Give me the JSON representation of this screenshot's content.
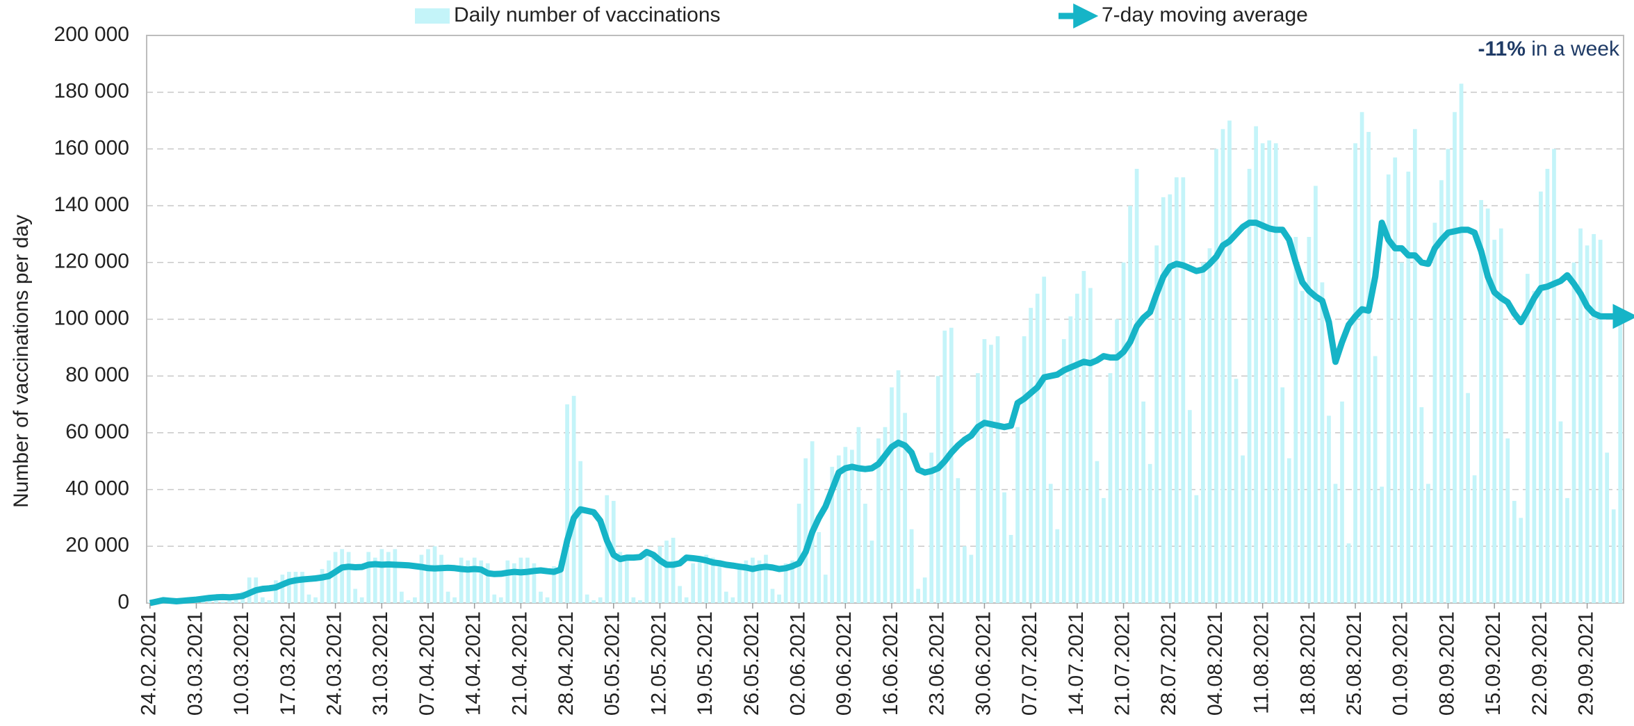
{
  "chart_data": {
    "type": "bar_line",
    "y_axis_label": "Number of vaccinations per day",
    "annotation": {
      "bold": "-11%",
      "text": "in a week"
    },
    "ylim": [
      0,
      200000
    ],
    "yticks": [
      0,
      {
        "value": 20000,
        "label": "20 000"
      },
      {
        "value": 40000,
        "label": "40 000"
      },
      {
        "value": 60000,
        "label": "60 000"
      },
      {
        "value": 80000,
        "label": "80 000"
      },
      {
        "value": 100000,
        "label": "100 000"
      },
      {
        "value": 120000,
        "label": "120 000"
      },
      {
        "value": 140000,
        "label": "140 000"
      },
      {
        "value": 160000,
        "label": "160 000"
      },
      {
        "value": 180000,
        "label": "180 000"
      },
      {
        "value": 200000,
        "label": "200 000"
      }
    ],
    "grid": true,
    "categories": [
      "24.02.2021",
      null,
      null,
      null,
      null,
      null,
      null,
      "03.03.2021",
      null,
      null,
      null,
      null,
      null,
      null,
      "10.03.2021",
      null,
      null,
      null,
      null,
      null,
      null,
      "17.03.2021",
      null,
      null,
      null,
      null,
      null,
      null,
      "24.03.2021",
      null,
      null,
      null,
      null,
      null,
      null,
      "31.03.2021",
      null,
      null,
      null,
      null,
      null,
      null,
      "07.04.2021",
      null,
      null,
      null,
      null,
      null,
      null,
      "14.04.2021",
      null,
      null,
      null,
      null,
      null,
      null,
      "21.04.2021",
      null,
      null,
      null,
      null,
      null,
      null,
      "28.04.2021",
      null,
      null,
      null,
      null,
      null,
      null,
      "05.05.2021",
      null,
      null,
      null,
      null,
      null,
      null,
      "12.05.2021",
      null,
      null,
      null,
      null,
      null,
      null,
      "19.05.2021",
      null,
      null,
      null,
      null,
      null,
      null,
      "26.05.2021",
      null,
      null,
      null,
      null,
      null,
      null,
      "02.06.2021",
      null,
      null,
      null,
      null,
      null,
      null,
      "09.06.2021",
      null,
      null,
      null,
      null,
      null,
      null,
      "16.06.2021",
      null,
      null,
      null,
      null,
      null,
      null,
      "23.06.2021",
      null,
      null,
      null,
      null,
      null,
      null,
      "30.06.2021",
      null,
      null,
      null,
      null,
      null,
      null,
      "07.07.2021",
      null,
      null,
      null,
      null,
      null,
      null,
      "14.07.2021",
      null,
      null,
      null,
      null,
      null,
      null,
      "21.07.2021",
      null,
      null,
      null,
      null,
      null,
      null,
      "28.07.2021",
      null,
      null,
      null,
      null,
      null,
      null,
      "04.08.2021",
      null,
      null,
      null,
      null,
      null,
      null,
      "11.08.2021",
      null,
      null,
      null,
      null,
      null,
      null,
      "18.08.2021",
      null,
      null,
      null,
      null,
      null,
      null,
      "25.08.2021",
      null,
      null,
      null,
      null,
      null,
      null,
      "01.09.2021",
      null,
      null,
      null,
      null,
      null,
      null,
      "08.09.2021",
      null,
      null,
      null,
      null,
      null,
      null,
      "15.09.2021",
      null,
      null,
      null,
      null,
      null,
      null,
      "22.09.2021",
      null,
      null,
      null,
      null,
      null,
      null,
      "29.09.2021",
      null,
      null,
      null,
      null,
      null
    ],
    "series": [
      {
        "name": "Daily number of vaccinations",
        "type": "bar",
        "color": "#c4f4f9",
        "values": [
          300,
          800,
          1500,
          400,
          200,
          1500,
          2000,
          2000,
          2500,
          2500,
          800,
          500,
          3000,
          3000,
          4000,
          9000,
          9000,
          2000,
          1000,
          8000,
          10000,
          11000,
          11000,
          11000,
          3000,
          2000,
          12000,
          15000,
          18000,
          19000,
          18000,
          5000,
          2000,
          18000,
          16000,
          19000,
          18000,
          19000,
          4000,
          1000,
          2000,
          17000,
          19000,
          20000,
          17000,
          4000,
          2000,
          16000,
          15000,
          16000,
          15000,
          14000,
          3000,
          2000,
          15000,
          14000,
          16000,
          16000,
          14000,
          4000,
          2000,
          13000,
          15000,
          70000,
          73000,
          50000,
          3000,
          1000,
          2000,
          38000,
          36000,
          18000,
          17000,
          2000,
          1000,
          18000,
          16000,
          20000,
          22000,
          23000,
          6000,
          2000,
          14000,
          15000,
          17000,
          16000,
          15000,
          4000,
          2000,
          14000,
          15000,
          16000,
          15000,
          17000,
          5000,
          3000,
          14000,
          15000,
          35000,
          51000,
          57000,
          25000,
          10000,
          48000,
          52000,
          55000,
          54000,
          62000,
          35000,
          22000,
          58000,
          62000,
          76000,
          82000,
          67000,
          26000,
          5000,
          9000,
          53000,
          80000,
          96000,
          97000,
          44000,
          20000,
          17000,
          81000,
          93000,
          91000,
          94000,
          39000,
          24000,
          62000,
          94000,
          104000,
          109000,
          115000,
          42000,
          26000,
          93000,
          101000,
          109000,
          117000,
          111000,
          50000,
          37000,
          81000,
          100000,
          120000,
          140000,
          153000,
          71000,
          49000,
          126000,
          143000,
          144000,
          150000,
          150000,
          68000,
          38000,
          120000,
          125000,
          160000,
          167000,
          170000,
          79000,
          52000,
          153000,
          168000,
          162000,
          163000,
          162000,
          76000,
          51000,
          129000,
          110000,
          129000,
          147000,
          113000,
          66000,
          42000,
          71000,
          21000,
          162000,
          173000,
          166000,
          87000,
          41000,
          151000,
          157000,
          120000,
          152000,
          167000,
          69000,
          42000,
          134000,
          149000,
          160000,
          173000,
          183000,
          74000,
          45000,
          142000,
          139000,
          128000,
          132000,
          58000,
          36000,
          30000,
          116000,
          110000,
          145000,
          153000,
          160000,
          64000,
          37000,
          120000,
          132000,
          126000,
          130000,
          128000,
          53000,
          33000,
          100000
        ]
      },
      {
        "name": "7-day moving average",
        "type": "line",
        "color": "#16b4c7",
        "values": [
          0,
          500,
          1000,
          800,
          600,
          800,
          1000,
          1200,
          1500,
          1800,
          2000,
          2100,
          2000,
          2200,
          2500,
          3500,
          4500,
          5000,
          5200,
          5500,
          6500,
          7500,
          8000,
          8300,
          8500,
          8700,
          9000,
          9500,
          11000,
          12500,
          12800,
          12600,
          12700,
          13500,
          13700,
          13500,
          13600,
          13500,
          13400,
          13300,
          13000,
          12700,
          12300,
          12200,
          12300,
          12400,
          12300,
          12000,
          11800,
          12000,
          11800,
          10500,
          10200,
          10300,
          10700,
          11000,
          10800,
          11000,
          11300,
          11500,
          11200,
          11000,
          11800,
          22000,
          30000,
          33000,
          32500,
          32000,
          29000,
          22000,
          17000,
          15500,
          16000,
          16000,
          16200,
          18000,
          17000,
          15000,
          13500,
          13500,
          14000,
          16000,
          15800,
          15500,
          15000,
          14300,
          14000,
          13500,
          13200,
          12800,
          12500,
          12000,
          12500,
          12800,
          12500,
          12000,
          12300,
          13000,
          14000,
          18000,
          25000,
          30000,
          34000,
          40000,
          46000,
          47500,
          48000,
          47500,
          47200,
          47500,
          49000,
          52000,
          55000,
          56500,
          55500,
          53000,
          47000,
          46000,
          46500,
          47500,
          50000,
          53000,
          55500,
          57500,
          59000,
          62000,
          63500,
          63000,
          62500,
          62000,
          62500,
          70500,
          72000,
          74000,
          76000,
          79500,
          80000,
          80500,
          82000,
          83000,
          84000,
          85000,
          84500,
          85500,
          87000,
          86500,
          86500,
          88500,
          92000,
          97500,
          100500,
          102500,
          109000,
          115000,
          118500,
          119500,
          119000,
          118000,
          117000,
          117500,
          119500,
          122000,
          126000,
          127500,
          130000,
          132500,
          134000,
          134000,
          133000,
          132000,
          131500,
          131500,
          128000,
          120000,
          113000,
          110000,
          108000,
          106500,
          99000,
          85000,
          92000,
          98000,
          101000,
          103500,
          103000,
          115000,
          134000,
          128000,
          125000,
          125000,
          122500,
          122500,
          120000,
          119500,
          125000,
          128000,
          130500,
          131000,
          131500,
          131500,
          130500,
          124000,
          115000,
          109500,
          107500,
          106000,
          102000,
          99000,
          103000,
          107500,
          111000,
          111500,
          112500,
          113500,
          115500,
          112500,
          109000,
          104500,
          102000,
          101000,
          101000,
          101000,
          101000
        ]
      }
    ]
  }
}
